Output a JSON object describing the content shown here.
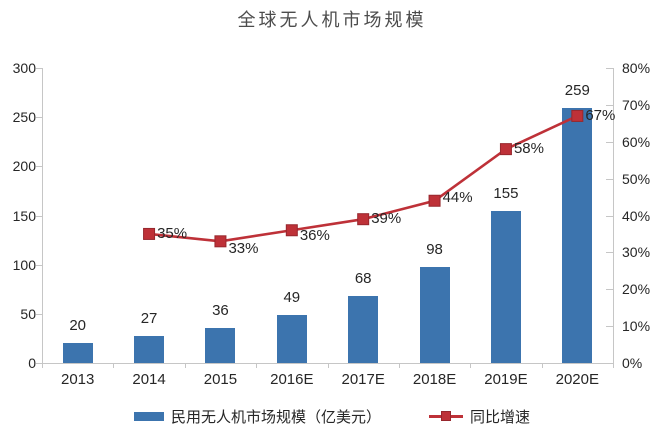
{
  "title": "全球无人机市场规模",
  "colors": {
    "bar": "#3C74AE",
    "line": "#BE3138",
    "line_dark": "#97272D",
    "axis": "#C6C6C6",
    "text": "#262626",
    "title_text": "#4C4C4C"
  },
  "chart_data": {
    "type": "bar+line",
    "title": "全球无人机市场规模",
    "categories": [
      "2013",
      "2014",
      "2015",
      "2016E",
      "2017E",
      "2018E",
      "2019E",
      "2020E"
    ],
    "series": [
      {
        "name": "民用无人机市场规模（亿美元）",
        "type": "bar",
        "axis": "left",
        "values": [
          20,
          27,
          36,
          49,
          68,
          98,
          155,
          259
        ]
      },
      {
        "name": "同比增速",
        "type": "line",
        "axis": "right",
        "unit": "%",
        "values": [
          null,
          35,
          33,
          36,
          39,
          44,
          58,
          67
        ],
        "label_dy": [
          0,
          0,
          8,
          6,
          0,
          -3,
          0,
          0
        ]
      }
    ],
    "left_axis": {
      "min": 0,
      "max": 300,
      "step": 50,
      "ticks": [
        "0",
        "50",
        "100",
        "150",
        "200",
        "250",
        "300"
      ]
    },
    "right_axis": {
      "min": 0,
      "max": 80,
      "step": 10,
      "ticks": [
        "0%",
        "10%",
        "20%",
        "30%",
        "40%",
        "50%",
        "60%",
        "70%",
        "80%"
      ]
    },
    "grid": false,
    "legend_position": "bottom"
  }
}
